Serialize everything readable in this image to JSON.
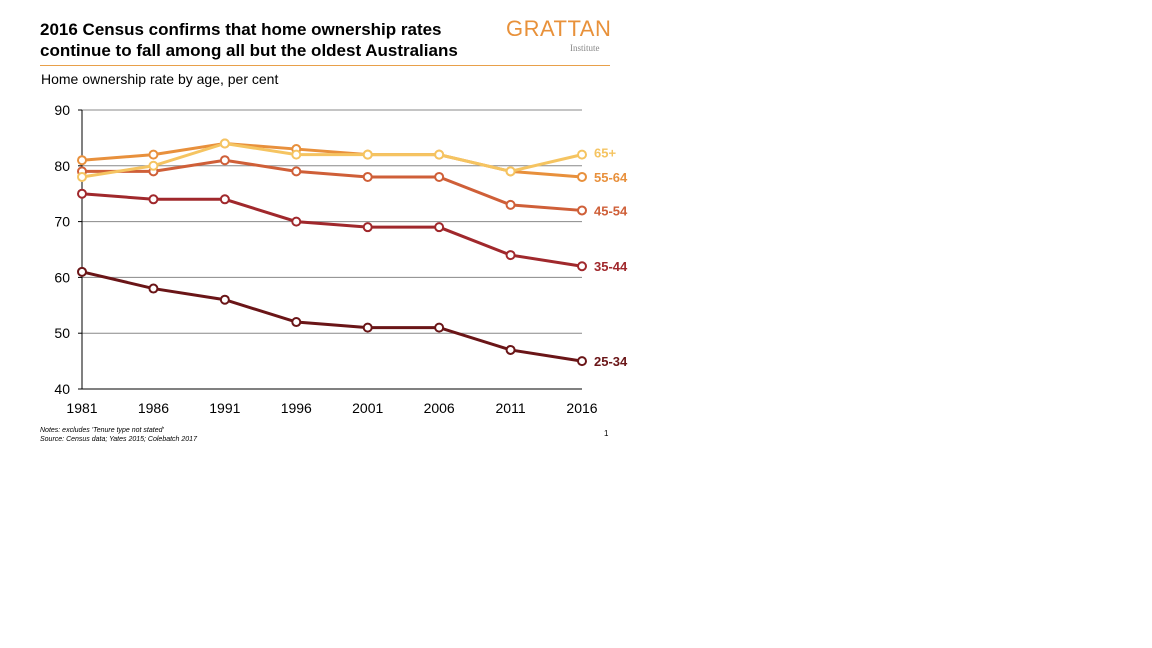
{
  "title": "2016 Census confirms that home ownership rates continue to fall among all but the oldest Australians",
  "logo": {
    "name": "GRATTAN",
    "sub": "Institute",
    "color": "#E8913A"
  },
  "page_number": "1",
  "notes": "Notes: excludes 'Tenure type not stated'",
  "source": "Source: Census data; Yates 2015; Colebatch 2017",
  "chart_data": {
    "type": "line",
    "title": "Home ownership rate by age, per cent",
    "x": [
      1981,
      1986,
      1991,
      1996,
      2001,
      2006,
      2011,
      2016
    ],
    "ylim": [
      40,
      90
    ],
    "yticks": [
      40,
      50,
      60,
      70,
      80,
      90
    ],
    "grid": true,
    "legend": "direct labels at line ends",
    "series": [
      {
        "name": "65+",
        "color": "#F5C461",
        "values": [
          78,
          80,
          84,
          82,
          82,
          82,
          79,
          82
        ]
      },
      {
        "name": "55-64",
        "color": "#E8903C",
        "values": [
          81,
          82,
          84,
          83,
          82,
          82,
          79,
          78
        ]
      },
      {
        "name": "45-54",
        "color": "#CF5F38",
        "values": [
          79,
          79,
          81,
          79,
          78,
          78,
          73,
          72
        ]
      },
      {
        "name": "35-44",
        "color": "#A0282C",
        "values": [
          75,
          74,
          74,
          70,
          69,
          69,
          64,
          62
        ]
      },
      {
        "name": "25-34",
        "color": "#6A1517",
        "values": [
          61,
          58,
          56,
          52,
          51,
          51,
          47,
          45
        ]
      }
    ]
  }
}
